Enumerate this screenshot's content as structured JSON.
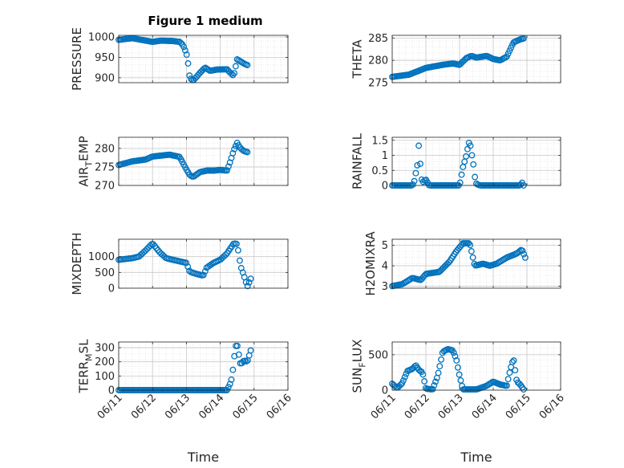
{
  "title": "Figure 1 medium",
  "marker_color": "#0072BD",
  "axis_color": "#262626",
  "grid": "dotted minor",
  "chart_data": [
    {
      "type": "scatter",
      "ylabel": "PRESSURE",
      "yticks": [
        "900",
        "950",
        "1000"
      ],
      "ytick_values": [
        900,
        950,
        1000
      ],
      "ylim": [
        888,
        1004
      ],
      "xlim": [
        0,
        5
      ],
      "xticks": [
        "06/11",
        "06/12",
        "06/13",
        "06/14",
        "06/15",
        "06/16"
      ],
      "xlabel": "",
      "show_xticklabels": false,
      "anchors": [
        [
          0,
          993
        ],
        [
          0.4,
          997
        ],
        [
          0.8,
          991
        ],
        [
          1.0,
          988
        ],
        [
          1.25,
          991
        ],
        [
          1.6,
          990
        ],
        [
          1.8,
          988
        ],
        [
          1.9,
          980
        ],
        [
          2.0,
          960
        ],
        [
          2.05,
          935
        ],
        [
          2.1,
          900
        ],
        [
          2.2,
          893
        ],
        [
          2.4,
          912
        ],
        [
          2.55,
          925
        ],
        [
          2.7,
          917
        ],
        [
          2.9,
          920
        ],
        [
          3.2,
          921
        ],
        [
          3.3,
          912
        ],
        [
          3.4,
          905
        ],
        [
          3.5,
          945
        ],
        [
          3.6,
          940
        ],
        [
          3.7,
          935
        ],
        [
          3.8,
          931
        ]
      ],
      "n": 90
    },
    {
      "type": "scatter",
      "ylabel": "THETA",
      "yticks": [
        "275",
        "280",
        "285"
      ],
      "ytick_values": [
        275,
        280,
        285
      ],
      "ylim": [
        275,
        285.6
      ],
      "xlim": [
        0,
        5
      ],
      "xticks": [
        "06/11",
        "06/12",
        "06/13",
        "06/14",
        "06/15",
        "06/16"
      ],
      "xlabel": "",
      "show_xticklabels": false,
      "anchors": [
        [
          0,
          276.3
        ],
        [
          0.5,
          276.8
        ],
        [
          1.0,
          278.3
        ],
        [
          1.5,
          279.0
        ],
        [
          1.8,
          279.3
        ],
        [
          2.0,
          279.0
        ],
        [
          2.2,
          280.5
        ],
        [
          2.35,
          281.0
        ],
        [
          2.5,
          280.6
        ],
        [
          2.8,
          281.0
        ],
        [
          3.0,
          280.3
        ],
        [
          3.2,
          280.0
        ],
        [
          3.4,
          280.8
        ],
        [
          3.6,
          284.0
        ],
        [
          3.8,
          284.7
        ],
        [
          3.9,
          284.9
        ]
      ],
      "n": 95
    },
    {
      "type": "scatter",
      "ylabel": "AIR_TEMP",
      "yticks": [
        "270",
        "275",
        "280"
      ],
      "ytick_values": [
        270,
        275,
        280
      ],
      "ylim": [
        270,
        283
      ],
      "xlim": [
        0,
        5
      ],
      "xticks": [
        "06/11",
        "06/12",
        "06/13",
        "06/14",
        "06/15",
        "06/16"
      ],
      "xlabel": "",
      "show_xticklabels": false,
      "anchors": [
        [
          0,
          275.5
        ],
        [
          0.4,
          276.5
        ],
        [
          0.8,
          277.0
        ],
        [
          1.0,
          277.8
        ],
        [
          1.5,
          278.3
        ],
        [
          1.8,
          277.7
        ],
        [
          1.9,
          276.0
        ],
        [
          2.0,
          274.3
        ],
        [
          2.1,
          272.8
        ],
        [
          2.2,
          272.3
        ],
        [
          2.4,
          273.6
        ],
        [
          2.6,
          274.0
        ],
        [
          2.8,
          274.0
        ],
        [
          3.0,
          274.2
        ],
        [
          3.2,
          274.0
        ],
        [
          3.3,
          276.5
        ],
        [
          3.4,
          279.5
        ],
        [
          3.5,
          281.5
        ],
        [
          3.6,
          280.0
        ],
        [
          3.7,
          279.3
        ],
        [
          3.8,
          279.0
        ]
      ],
      "n": 90
    },
    {
      "type": "scatter",
      "ylabel": "RAINFALL",
      "yticks": [
        "0",
        "0.5",
        "1",
        "1.5"
      ],
      "ytick_values": [
        0,
        0.5,
        1,
        1.5
      ],
      "ylim": [
        0,
        1.6
      ],
      "xlim": [
        0,
        5
      ],
      "xticks": [
        "06/11",
        "06/12",
        "06/13",
        "06/14",
        "06/15",
        "06/16"
      ],
      "xlabel": "",
      "show_xticklabels": false,
      "anchors": [
        [
          0,
          0
        ],
        [
          0.6,
          0
        ],
        [
          0.65,
          0.1
        ],
        [
          0.7,
          0.4
        ],
        [
          0.75,
          0.7
        ],
        [
          0.8,
          1.5
        ],
        [
          0.85,
          0.3
        ],
        [
          0.9,
          0.1
        ],
        [
          0.95,
          0.15
        ],
        [
          1.0,
          0.2
        ],
        [
          1.1,
          0
        ],
        [
          2.0,
          0
        ],
        [
          2.05,
          0.3
        ],
        [
          2.1,
          0.6
        ],
        [
          2.15,
          0.8
        ],
        [
          2.2,
          1.0
        ],
        [
          2.25,
          1.3
        ],
        [
          2.3,
          1.5
        ],
        [
          2.35,
          1.1
        ],
        [
          2.4,
          0.8
        ],
        [
          2.45,
          0.3
        ],
        [
          2.5,
          0.05
        ],
        [
          2.6,
          0
        ],
        [
          3.8,
          0
        ],
        [
          3.85,
          0.1
        ],
        [
          3.9,
          0
        ]
      ],
      "n": 90
    },
    {
      "type": "scatter",
      "ylabel": "MIXDEPTH",
      "yticks": [
        "0",
        "500",
        "1000"
      ],
      "ytick_values": [
        0,
        500,
        1000
      ],
      "ylim": [
        0,
        1550
      ],
      "xlim": [
        0,
        5
      ],
      "xticks": [
        "06/11",
        "06/12",
        "06/13",
        "06/14",
        "06/15",
        "06/16"
      ],
      "xlabel": "",
      "show_xticklabels": false,
      "anchors": [
        [
          0,
          900
        ],
        [
          0.4,
          950
        ],
        [
          0.6,
          1000
        ],
        [
          0.8,
          1200
        ],
        [
          1.0,
          1420
        ],
        [
          1.2,
          1150
        ],
        [
          1.4,
          950
        ],
        [
          1.6,
          900
        ],
        [
          1.8,
          850
        ],
        [
          2.0,
          800
        ],
        [
          2.1,
          520
        ],
        [
          2.3,
          450
        ],
        [
          2.5,
          400
        ],
        [
          2.6,
          650
        ],
        [
          2.8,
          800
        ],
        [
          3.0,
          900
        ],
        [
          3.2,
          1100
        ],
        [
          3.4,
          1420
        ],
        [
          3.5,
          1400
        ],
        [
          3.6,
          700
        ],
        [
          3.7,
          400
        ],
        [
          3.8,
          50
        ],
        [
          3.9,
          300
        ]
      ],
      "n": 85
    },
    {
      "type": "scatter",
      "ylabel": "H2OMIXRA",
      "yticks": [
        "3",
        "4",
        "5"
      ],
      "ytick_values": [
        3,
        4,
        5
      ],
      "ylim": [
        2.9,
        5.3
      ],
      "xlim": [
        0,
        5
      ],
      "xticks": [
        "06/11",
        "06/12",
        "06/13",
        "06/14",
        "06/15",
        "06/16"
      ],
      "xlabel": "",
      "show_xticklabels": false,
      "anchors": [
        [
          0,
          3.0
        ],
        [
          0.3,
          3.1
        ],
        [
          0.6,
          3.4
        ],
        [
          0.85,
          3.3
        ],
        [
          1.0,
          3.6
        ],
        [
          1.4,
          3.7
        ],
        [
          1.7,
          4.2
        ],
        [
          1.9,
          4.7
        ],
        [
          2.1,
          5.1
        ],
        [
          2.3,
          5.1
        ],
        [
          2.45,
          4.0
        ],
        [
          2.7,
          4.1
        ],
        [
          2.9,
          4.0
        ],
        [
          3.1,
          4.1
        ],
        [
          3.4,
          4.4
        ],
        [
          3.7,
          4.6
        ],
        [
          3.85,
          4.8
        ],
        [
          3.95,
          4.4
        ]
      ],
      "n": 95
    },
    {
      "type": "scatter",
      "ylabel": "TERR_MSL",
      "yticks": [
        "0",
        "100",
        "200",
        "300"
      ],
      "ytick_values": [
        0,
        100,
        200,
        300
      ],
      "ylim": [
        0,
        340
      ],
      "xlim": [
        0,
        5
      ],
      "xticks": [
        "06/11",
        "06/12",
        "06/13",
        "06/14",
        "06/15",
        "06/16"
      ],
      "xlabel": "Time",
      "show_xticklabels": true,
      "anchors": [
        [
          0,
          0
        ],
        [
          3.2,
          0
        ],
        [
          3.3,
          50
        ],
        [
          3.35,
          90
        ],
        [
          3.4,
          200
        ],
        [
          3.45,
          310
        ],
        [
          3.5,
          320
        ],
        [
          3.6,
          180
        ],
        [
          3.7,
          210
        ],
        [
          3.8,
          200
        ],
        [
          3.9,
          280
        ]
      ],
      "n": 90
    },
    {
      "type": "scatter",
      "ylabel": "SUN_FLUX",
      "yticks": [
        "0",
        "500"
      ],
      "ytick_values": [
        0,
        500
      ],
      "ylim": [
        0,
        680
      ],
      "xlim": [
        0,
        5
      ],
      "xticks": [
        "06/11",
        "06/12",
        "06/13",
        "06/14",
        "06/15",
        "06/16"
      ],
      "xlabel": "Time",
      "show_xticklabels": true,
      "anchors": [
        [
          0,
          90
        ],
        [
          0.15,
          30
        ],
        [
          0.3,
          100
        ],
        [
          0.45,
          270
        ],
        [
          0.6,
          300
        ],
        [
          0.7,
          350
        ],
        [
          0.8,
          280
        ],
        [
          0.9,
          250
        ],
        [
          1.0,
          20
        ],
        [
          1.2,
          10
        ],
        [
          1.35,
          200
        ],
        [
          1.5,
          540
        ],
        [
          1.65,
          580
        ],
        [
          1.8,
          560
        ],
        [
          1.9,
          440
        ],
        [
          2.0,
          200
        ],
        [
          2.1,
          10
        ],
        [
          2.5,
          10
        ],
        [
          2.8,
          60
        ],
        [
          3.0,
          120
        ],
        [
          3.2,
          80
        ],
        [
          3.4,
          60
        ],
        [
          3.5,
          280
        ],
        [
          3.6,
          450
        ],
        [
          3.7,
          120
        ],
        [
          3.8,
          80
        ],
        [
          3.9,
          10
        ]
      ],
      "n": 95
    }
  ]
}
